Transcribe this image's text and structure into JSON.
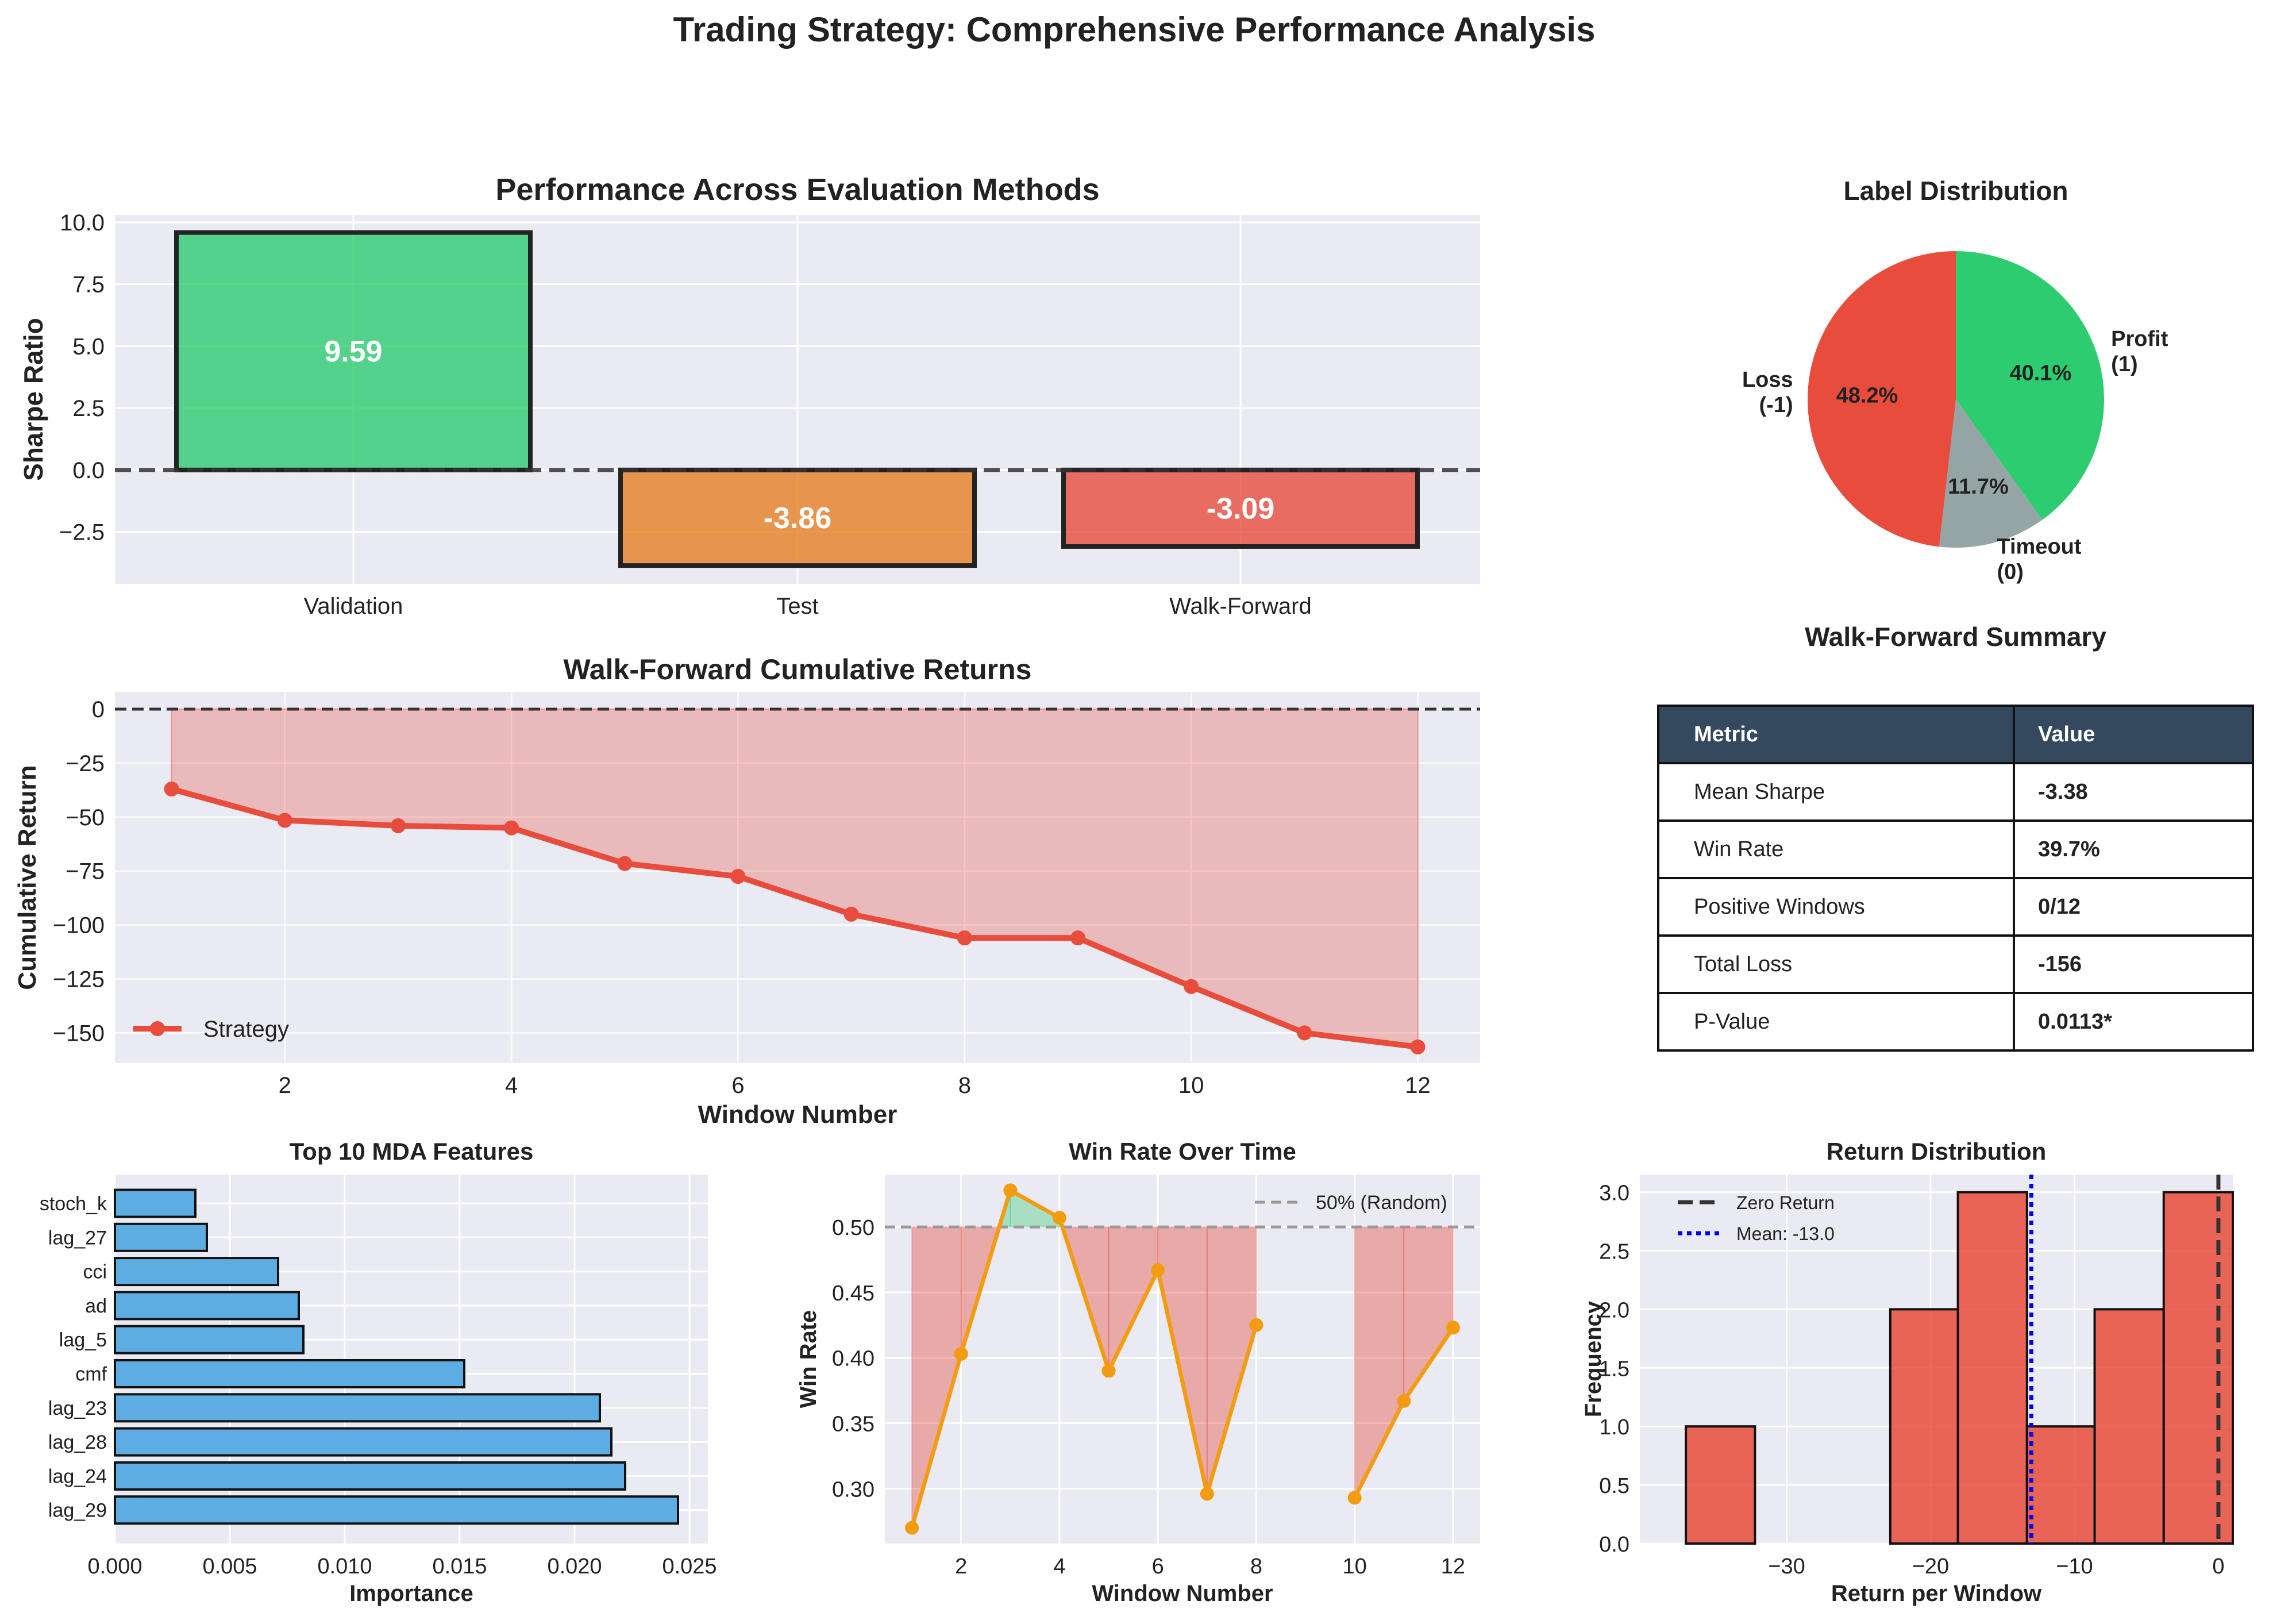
{
  "suptitle": "Trading Strategy: Comprehensive Performance Analysis",
  "colors": {
    "panel_bg": "#eaeaf2",
    "grid": "#ffffff",
    "green": "#2ecc71",
    "orange": "#e67e22",
    "red": "#e74c3c",
    "gray": "#95a5a6",
    "blue_bar": "#5dade2",
    "win_line": "#f39c12",
    "table_header": "#34495e",
    "mean_line": "#0000ee"
  },
  "chart_data": [
    {
      "id": "sharpe",
      "type": "bar",
      "title": "Performance Across Evaluation Methods",
      "ylabel": "Sharpe Ratio",
      "xlabel": "",
      "categories": [
        "Validation",
        "Test",
        "Walk-Forward"
      ],
      "values": [
        9.59,
        -3.86,
        -3.09
      ],
      "value_labels": [
        "9.59",
        "-3.86",
        "-3.09"
      ],
      "colors": [
        "#2ecc71",
        "#e67e22",
        "#e74c3c"
      ],
      "ylim": [
        -4.6,
        10.3
      ],
      "yticks": [
        -2.5,
        0.0,
        2.5,
        5.0,
        7.5,
        10.0
      ],
      "ytick_labels": [
        "−2.5",
        "0.0",
        "2.5",
        "5.0",
        "7.5",
        "10.0"
      ],
      "reference_line": 0
    },
    {
      "id": "labels",
      "type": "pie",
      "title": "Label Distribution",
      "slices": [
        {
          "label": [
            "Profit",
            "(1)"
          ],
          "value": 40.1,
          "pct": "40.1%",
          "color": "#2ecc71"
        },
        {
          "label": [
            "Timeout",
            "(0)"
          ],
          "value": 11.7,
          "pct": "11.7%",
          "color": "#95a5a6"
        },
        {
          "label": [
            "Loss",
            "(-1)"
          ],
          "value": 48.2,
          "pct": "48.2%",
          "color": "#e74c3c"
        }
      ]
    },
    {
      "id": "cumret",
      "type": "line",
      "title": "Walk-Forward Cumulative Returns",
      "xlabel": "Window Number",
      "ylabel": "Cumulative Return",
      "series": [
        {
          "name": "Strategy",
          "x": [
            1,
            2,
            3,
            4,
            5,
            6,
            7,
            8,
            9,
            10,
            11,
            12
          ],
          "y": [
            -37,
            -51.5,
            -54,
            -55,
            -71.5,
            -77.5,
            -95,
            -106,
            -106,
            -128.5,
            -150,
            -156.5
          ]
        }
      ],
      "xlim": [
        0.5,
        12.55
      ],
      "ylim": [
        -164,
        8
      ],
      "xticks": [
        2,
        4,
        6,
        8,
        10,
        12
      ],
      "yticks": [
        0,
        -25,
        -50,
        -75,
        -100,
        -125,
        -150
      ],
      "ytick_labels": [
        "0",
        "−25",
        "−50",
        "−75",
        "−100",
        "−125",
        "−150"
      ],
      "reference_line": 0
    },
    {
      "id": "mda",
      "type": "bar",
      "orientation": "horizontal",
      "title": "Top 10 MDA Features",
      "xlabel": "Importance",
      "categories": [
        "stoch_k",
        "lag_27",
        "cci",
        "ad",
        "lag_5",
        "cmf",
        "lag_23",
        "lag_28",
        "lag_24",
        "lag_29"
      ],
      "values": [
        0.0035,
        0.004,
        0.0071,
        0.008,
        0.0082,
        0.0152,
        0.0211,
        0.0216,
        0.0222,
        0.0245
      ],
      "xlim": [
        0,
        0.0258
      ],
      "xticks": [
        0.0,
        0.005,
        0.01,
        0.015,
        0.02,
        0.025
      ],
      "xtick_labels": [
        "0.000",
        "0.005",
        "0.010",
        "0.015",
        "0.020",
        "0.025"
      ]
    },
    {
      "id": "winrate",
      "type": "line",
      "title": "Win Rate Over Time",
      "xlabel": "Window Number",
      "ylabel": "Win Rate",
      "series": [
        {
          "name": "",
          "x": [
            1,
            2,
            3,
            4,
            5,
            6,
            7,
            8,
            10,
            11,
            12
          ],
          "y": [
            0.27,
            0.403,
            0.528,
            0.507,
            0.39,
            0.467,
            0.296,
            0.425,
            0.293,
            0.367,
            0.423
          ]
        }
      ],
      "segments": [
        [
          0,
          7
        ],
        [
          8,
          10
        ]
      ],
      "reference": {
        "value": 0.5,
        "label": "50% (Random)"
      },
      "xlim": [
        0.45,
        12.55
      ],
      "ylim": [
        0.258,
        0.54
      ],
      "xticks": [
        2,
        4,
        6,
        8,
        10,
        12
      ],
      "yticks": [
        0.3,
        0.35,
        0.4,
        0.45,
        0.5
      ],
      "ytick_labels": [
        "0.30",
        "0.35",
        "0.40",
        "0.45",
        "0.50"
      ]
    },
    {
      "id": "retdist",
      "type": "histogram",
      "title": "Return Distribution",
      "xlabel": "Return per Window",
      "ylabel": "Frequency",
      "bins": [
        -37,
        -32.2,
        -27.6,
        -22.8,
        -18.0,
        -13.2,
        -8.4,
        -3.6,
        1.2
      ],
      "bin_edges": [
        -37.0,
        -32.2,
        -27.6,
        -22.8,
        -18.1,
        -13.3,
        -8.6,
        -3.8,
        1.0
      ],
      "counts": [
        1,
        0,
        0,
        2,
        3,
        1,
        2,
        3
      ],
      "vlines": [
        {
          "name": "Zero Return",
          "value": 0
        },
        {
          "name": "Mean: -13.0",
          "value": -13.0
        }
      ],
      "xlim": [
        -40.2,
        1.0
      ],
      "ylim": [
        0,
        3.15
      ],
      "xticks": [
        -30,
        -20,
        -10,
        0
      ],
      "xtick_labels": [
        "−30",
        "−20",
        "−10",
        "0"
      ],
      "yticks": [
        0,
        0.5,
        1.0,
        1.5,
        2.0,
        2.5,
        3.0
      ],
      "ytick_labels": [
        "0.0",
        "0.5",
        "1.0",
        "1.5",
        "2.0",
        "2.5",
        "3.0"
      ]
    }
  ],
  "summary_table": {
    "title": "Walk-Forward Summary",
    "header": [
      "Metric",
      "Value"
    ],
    "rows": [
      [
        "Mean Sharpe",
        "-3.38"
      ],
      [
        "Win Rate",
        "39.7%"
      ],
      [
        "Positive Windows",
        "0/12"
      ],
      [
        "Total Loss",
        "-156"
      ],
      [
        "P-Value",
        "0.0113*"
      ]
    ]
  }
}
